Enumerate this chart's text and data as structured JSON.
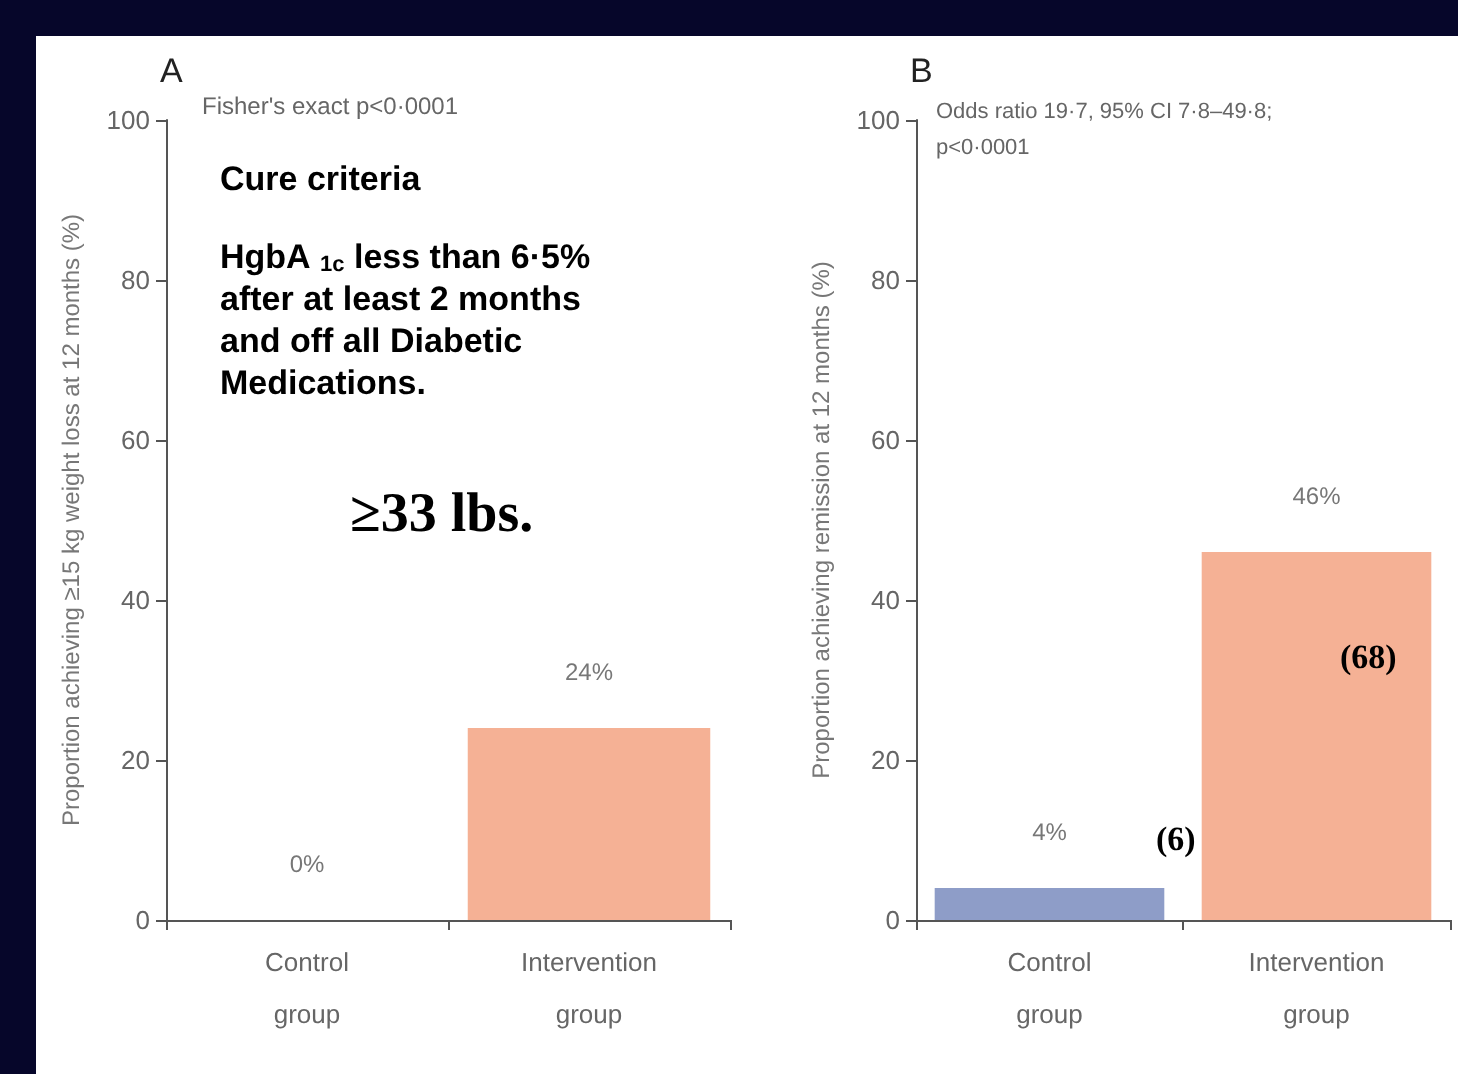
{
  "chart_data": [
    {
      "type": "bar",
      "title": "A",
      "ylabel": "Proportion achieving ≥15 kg weight loss at 12 months (%)",
      "categories": [
        "Control group",
        "Intervention group"
      ],
      "values": [
        0,
        24
      ],
      "colors": [
        "#8e9dc8",
        "#f5b195"
      ],
      "value_labels": [
        "0%",
        "24%"
      ],
      "ylim": [
        0,
        100
      ],
      "yticks": [
        0,
        20,
        40,
        60,
        80,
        100
      ],
      "annotations": [
        "Fisher's exact p<0·0001",
        "Cure criteria",
        "HgbA $_{1c}$ less than 6·5% after at least 2 months and off all Diabetic Medications.",
        "≥33 lbs."
      ]
    },
    {
      "type": "bar",
      "title": "B",
      "ylabel": "Proportion achieving remission at 12 months (%)",
      "categories": [
        "Control group",
        "Intervention group"
      ],
      "values": [
        4,
        46
      ],
      "colors": [
        "#8e9dc8",
        "#f5b195"
      ],
      "value_labels": [
        "4%",
        "46%"
      ],
      "ylim": [
        0,
        100
      ],
      "yticks": [
        0,
        20,
        40,
        60,
        80,
        100
      ],
      "annotations": [
        "Odds ratio 19·7, 95% CI 7·8–49·8; p<0·0001",
        "(6)",
        "(68)"
      ]
    }
  ]
}
